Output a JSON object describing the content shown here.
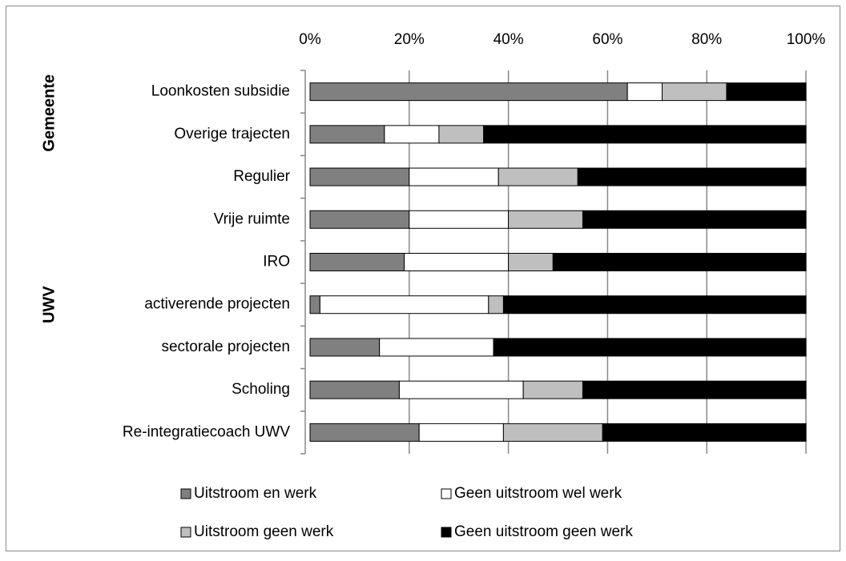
{
  "chart_data": {
    "type": "bar",
    "orientation": "horizontal",
    "stacked": true,
    "categories": [
      "Loonkosten subsidie",
      "Overige trajecten",
      "Regulier",
      "Vrije ruimte",
      "IRO",
      "activerende projecten",
      "sectorale projecten",
      "Scholing",
      "Re-integratiecoach UWV"
    ],
    "groups": [
      {
        "label": "Gemeente",
        "categories": [
          0,
          1
        ]
      },
      {
        "label": "UWV",
        "categories": [
          2,
          8
        ]
      }
    ],
    "series": [
      {
        "name": "Uitstroom en werk",
        "color": "#808080",
        "values": [
          64,
          15,
          20,
          20,
          19,
          2,
          14,
          18,
          22
        ]
      },
      {
        "name": "Geen uitstroom wel werk",
        "color": "#ffffff",
        "values": [
          7,
          11,
          18,
          20,
          21,
          34,
          23,
          25,
          17
        ]
      },
      {
        "name": "Uitstroom geen werk",
        "color": "#bfbfbf",
        "values": [
          13,
          9,
          16,
          15,
          9,
          3,
          0,
          12,
          20
        ]
      },
      {
        "name": "Geen uitstroom geen werk",
        "color": "#000000",
        "values": [
          16,
          65,
          46,
          45,
          51,
          61,
          63,
          45,
          41
        ]
      }
    ],
    "xlim": [
      0,
      100
    ],
    "xticks": [
      {
        "value": 0,
        "label": "0%"
      },
      {
        "value": 20,
        "label": "20%"
      },
      {
        "value": 40,
        "label": "40%"
      },
      {
        "value": 60,
        "label": "60%"
      },
      {
        "value": 80,
        "label": "80%"
      },
      {
        "value": 100,
        "label": "100%"
      }
    ],
    "grid": true,
    "legend": "bottom"
  }
}
